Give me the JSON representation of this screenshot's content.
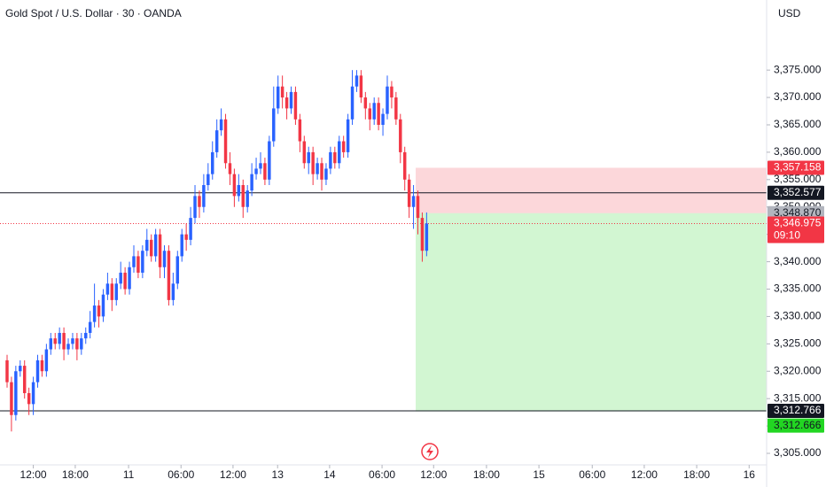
{
  "chart_data": {
    "type": "candlestick",
    "title": "Gold Spot / U.S. Dollar · 30 · OANDA",
    "currency": "USD",
    "up_color": "#2962ff",
    "down_color": "#f23645",
    "open": [
      3322,
      3318,
      3312,
      3320,
      3321,
      3316,
      3314,
      3318,
      3322,
      3320,
      3324,
      3326,
      3325,
      3327,
      3324,
      3325,
      3326,
      3324,
      3326,
      3327,
      3329,
      3332,
      3330,
      3334,
      3336,
      3333,
      3336,
      3338,
      3335,
      3339,
      3341,
      3338,
      3342,
      3344,
      3341,
      3345,
      3339,
      3342,
      3333,
      3336,
      3341,
      3345,
      3344,
      3348,
      3352,
      3350,
      3354,
      3356,
      3360,
      3364,
      3366,
      3358,
      3356,
      3352,
      3354,
      3350,
      3353,
      3356,
      3357,
      3358,
      3355,
      3362,
      3368,
      3372,
      3370,
      3368,
      3371,
      3366,
      3362,
      3358,
      3360,
      3356,
      3358,
      3355,
      3357,
      3360,
      3358,
      3362,
      3360,
      3366,
      3372,
      3374,
      3370,
      3368,
      3366,
      3369,
      3365,
      3367,
      3372,
      3370,
      3366,
      3360,
      3355,
      3350,
      3352,
      3348,
      3342
    ],
    "high": [
      3323,
      3319,
      3321,
      3322,
      3322,
      3317,
      3319,
      3323,
      3323,
      3325,
      3327,
      3327,
      3328,
      3328,
      3326,
      3327,
      3327,
      3327,
      3328,
      3331,
      3336,
      3333,
      3335,
      3338,
      3337,
      3337,
      3340,
      3339,
      3340,
      3343,
      3342,
      3343,
      3346,
      3345,
      3346,
      3346,
      3343,
      3343,
      3338,
      3342,
      3346,
      3347,
      3350,
      3354,
      3353,
      3356,
      3358,
      3362,
      3366,
      3368,
      3367,
      3360,
      3357,
      3356,
      3355,
      3354,
      3358,
      3359,
      3360,
      3359,
      3363,
      3372,
      3374,
      3374,
      3371,
      3372,
      3372,
      3367,
      3363,
      3361,
      3361,
      3359,
      3359,
      3358,
      3361,
      3361,
      3363,
      3363,
      3367,
      3375,
      3375,
      3375,
      3371,
      3369,
      3370,
      3370,
      3368,
      3374,
      3373,
      3371,
      3367,
      3361,
      3356,
      3354,
      3353,
      3349,
      3349
    ],
    "low": [
      3317,
      3309,
      3311,
      3319,
      3315,
      3312,
      3312,
      3317,
      3319,
      3319,
      3323,
      3324,
      3324,
      3322,
      3323,
      3324,
      3322,
      3323,
      3325,
      3326,
      3328,
      3328,
      3329,
      3333,
      3331,
      3332,
      3335,
      3334,
      3334,
      3338,
      3337,
      3337,
      3341,
      3340,
      3340,
      3337,
      3337,
      3332,
      3332,
      3335,
      3340,
      3342,
      3343,
      3347,
      3348,
      3349,
      3353,
      3355,
      3359,
      3363,
      3357,
      3354,
      3350,
      3351,
      3348,
      3349,
      3352,
      3355,
      3356,
      3354,
      3354,
      3361,
      3367,
      3368,
      3366,
      3367,
      3365,
      3360,
      3357,
      3356,
      3354,
      3355,
      3353,
      3354,
      3356,
      3357,
      3357,
      3359,
      3359,
      3365,
      3371,
      3369,
      3366,
      3364,
      3365,
      3364,
      3363,
      3366,
      3368,
      3365,
      3358,
      3353,
      3348,
      3346,
      3345,
      3340,
      3341
    ],
    "close": [
      3318,
      3312,
      3320,
      3321,
      3316,
      3314,
      3318,
      3322,
      3320,
      3324,
      3326,
      3325,
      3327,
      3324,
      3325,
      3326,
      3324,
      3326,
      3327,
      3329,
      3332,
      3330,
      3334,
      3336,
      3333,
      3336,
      3338,
      3335,
      3339,
      3341,
      3338,
      3342,
      3344,
      3341,
      3345,
      3339,
      3342,
      3333,
      3336,
      3341,
      3345,
      3344,
      3348,
      3352,
      3350,
      3354,
      3356,
      3360,
      3364,
      3366,
      3358,
      3356,
      3352,
      3354,
      3350,
      3353,
      3356,
      3357,
      3358,
      3355,
      3362,
      3368,
      3372,
      3370,
      3368,
      3371,
      3366,
      3362,
      3358,
      3360,
      3356,
      3358,
      3355,
      3357,
      3360,
      3358,
      3362,
      3360,
      3366,
      3372,
      3374,
      3370,
      3368,
      3366,
      3369,
      3365,
      3367,
      3372,
      3370,
      3366,
      3360,
      3355,
      3350,
      3352,
      3348,
      3342,
      3346.975
    ],
    "xlim": [
      -1.62,
      173.8
    ],
    "xticks": [
      {
        "value": 6,
        "label": "12:00"
      },
      {
        "value": 15.6,
        "label": "18:00"
      },
      {
        "value": 27.8,
        "label": "11"
      },
      {
        "value": 39.8,
        "label": "06:00"
      },
      {
        "value": 51.7,
        "label": "12:00"
      },
      {
        "value": 61.9,
        "label": "13"
      },
      {
        "value": 73.8,
        "label": "14"
      },
      {
        "value": 85.8,
        "label": "06:00"
      },
      {
        "value": 97.6,
        "label": "12:00"
      },
      {
        "value": 109.7,
        "label": "18:00"
      },
      {
        "value": 121.7,
        "label": "15"
      },
      {
        "value": 133.9,
        "label": "06:00"
      },
      {
        "value": 145.8,
        "label": "12:00"
      },
      {
        "value": 157.8,
        "label": "18:00"
      },
      {
        "value": 169.8,
        "label": "16"
      }
    ],
    "ylim": [
      3302.9,
      3387.8
    ],
    "yticks": [
      {
        "value": 3305,
        "label": "3,305.000"
      },
      {
        "value": 3310,
        "label": "3,310.000"
      },
      {
        "value": 3315,
        "label": "3,315.000"
      },
      {
        "value": 3320,
        "label": "3,320.000"
      },
      {
        "value": 3325,
        "label": "3,325.000"
      },
      {
        "value": 3330,
        "label": "3,330.000"
      },
      {
        "value": 3335,
        "label": "3,335.000"
      },
      {
        "value": 3340,
        "label": "3,340.000"
      },
      {
        "value": 3345,
        "label": "3,345.000"
      },
      {
        "value": 3350,
        "label": "3,350.000"
      },
      {
        "value": 3355,
        "label": "3,355.000"
      },
      {
        "value": 3360,
        "label": "3,360.000"
      },
      {
        "value": 3365,
        "label": "3,365.000"
      },
      {
        "value": 3370,
        "label": "3,370.000"
      },
      {
        "value": 3375,
        "label": "3,375.000"
      }
    ],
    "levels": [
      {
        "value": 3352.577,
        "label": "3,352.577"
      },
      {
        "value": 3312.766,
        "label": "3,312.766"
      }
    ],
    "last_price": {
      "value": 3346.975,
      "label": "3,346.975",
      "countdown": "09:10"
    },
    "position": {
      "start": 93.5,
      "stop": {
        "value": 3357.158,
        "label": "3,357.158"
      },
      "entry": {
        "value": 3348.87,
        "label": "3,348.870"
      },
      "target": {
        "value": 3312.666,
        "label": "3,312.666"
      }
    }
  }
}
